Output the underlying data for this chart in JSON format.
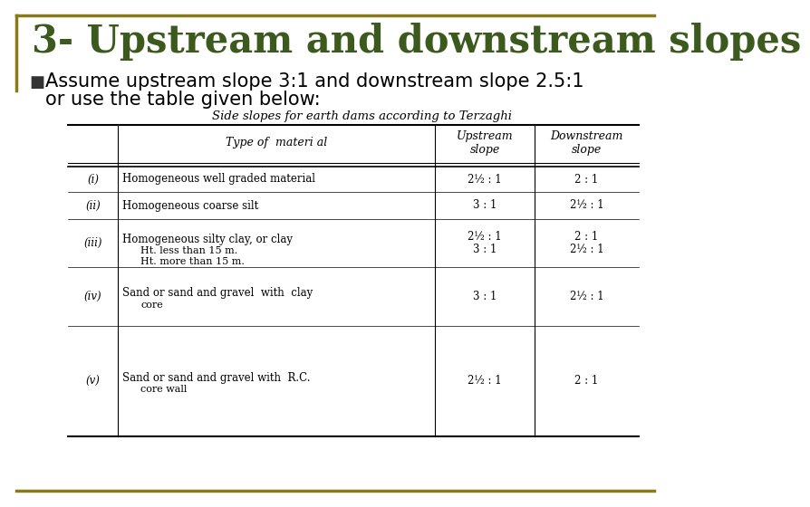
{
  "title": "3- Upstream and downstream slopes",
  "title_color": "#3d5a1e",
  "title_fontsize": 30,
  "bullet_text_line1": "Assume upstream slope 3:1 and downstream slope 2.5:1",
  "bullet_text_line2": "or use the table given below:",
  "bullet_color": "#000000",
  "bullet_fontsize": 15,
  "table_title": "Side slopes for earth dams according to Terzaghi",
  "table_title_fontsize": 9.5,
  "bg_color": "#ffffff",
  "border_color": "#8B7A1A",
  "col_headers": [
    "",
    "Type of material",
    "Upstream\nslope",
    "Downstream\nslope"
  ],
  "rows": [
    {
      "num": "(i)",
      "material": "Homogeneous well graded material",
      "material2": "",
      "upstream": "2½ : 1",
      "downstream": "2 : 1"
    },
    {
      "num": "(ii)",
      "material": "Homogeneous coarse silt",
      "material2": "",
      "upstream": "3 : 1",
      "downstream": "2½ : 1"
    },
    {
      "num": "(iii)",
      "material": "Homogeneous silty clay, or clay",
      "material2": "Ht. less than 15 m.\nHt. more than 15 m.",
      "upstream": "2½ : 1\n3 : 1",
      "downstream": "2 : 1\n2½ : 1"
    },
    {
      "num": "(iv)",
      "material": "Sand or sand and gravel  with  clay",
      "material2": "core",
      "upstream": "3 : 1",
      "downstream": "2½ : 1"
    },
    {
      "num": "(v)",
      "material": "Sand or sand and gravel with  R.C.",
      "material2": "core wall",
      "upstream": "2½ : 1",
      "downstream": "2 : 1"
    }
  ]
}
